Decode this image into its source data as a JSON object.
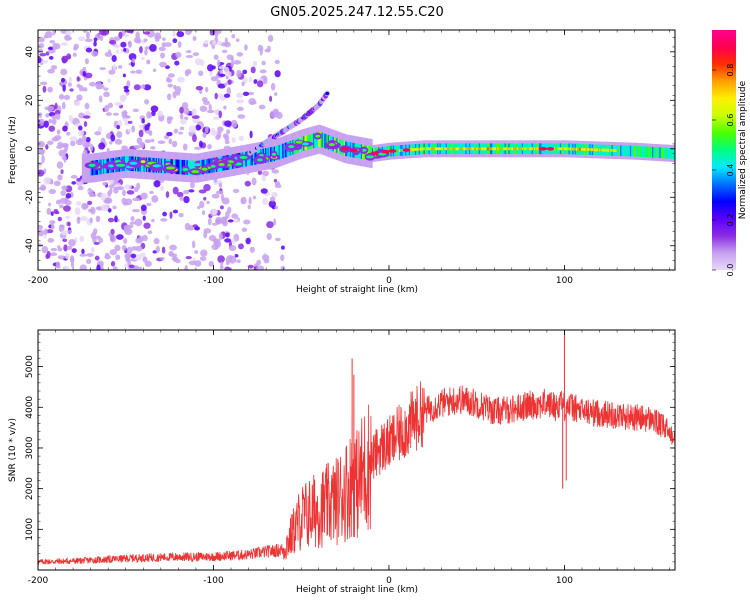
{
  "title": "GN05.2025.247.12.55.C20",
  "chart_data": [
    {
      "type": "heatmap",
      "name": "spectrogram",
      "xlabel": "Height of straight line (km)",
      "ylabel": "Frequency (Hz)",
      "xlim": [
        -200,
        163
      ],
      "ylim": [
        -50,
        49
      ],
      "xticks": [
        -200,
        -100,
        0,
        100
      ],
      "yticks": [
        -40,
        -20,
        0,
        20,
        40
      ],
      "ridge": [
        {
          "x": -170,
          "y": -8
        },
        {
          "x": -150,
          "y": -6
        },
        {
          "x": -130,
          "y": -7
        },
        {
          "x": -110,
          "y": -8
        },
        {
          "x": -95,
          "y": -6
        },
        {
          "x": -80,
          "y": -4
        },
        {
          "x": -65,
          "y": -2
        },
        {
          "x": -50,
          "y": 2
        },
        {
          "x": -40,
          "y": 4
        },
        {
          "x": -25,
          "y": 0
        },
        {
          "x": -10,
          "y": -2
        },
        {
          "x": 0,
          "y": -1
        },
        {
          "x": 20,
          "y": 0
        },
        {
          "x": 60,
          "y": 0
        },
        {
          "x": 100,
          "y": 0
        },
        {
          "x": 140,
          "y": -1
        },
        {
          "x": 163,
          "y": -2
        }
      ],
      "upper_branch": [
        {
          "x": -80,
          "y": -2
        },
        {
          "x": -65,
          "y": 5
        },
        {
          "x": -50,
          "y": 12
        },
        {
          "x": -40,
          "y": 18
        },
        {
          "x": -35,
          "y": 23
        }
      ],
      "colorbar": {
        "label": "Normalized spectral amplitude",
        "ticks": [
          "0.0",
          "0.2",
          "0.4",
          "0.6",
          "0.8"
        ],
        "range": [
          0,
          0.96
        ],
        "colors": [
          "#e8d8f8",
          "#c7a1f0",
          "#8b2be2",
          "#5a00ff",
          "#0000ff",
          "#0070ff",
          "#00e8ff",
          "#00ff80",
          "#4cff00",
          "#c8ff00",
          "#ffef00",
          "#ffa000",
          "#ff3000",
          "#ff0050",
          "#ff0090"
        ]
      }
    },
    {
      "type": "line",
      "name": "snr",
      "xlabel": "Height of straight line (km)",
      "ylabel": "SNR (10 * v/v)",
      "xlim": [
        -200,
        163
      ],
      "ylim": [
        0,
        5900
      ],
      "xticks": [
        -200,
        -100,
        0,
        100
      ],
      "yticks": [
        1000,
        2000,
        3000,
        4000,
        5000
      ],
      "color": "#ee3333",
      "series": [
        {
          "name": "SNR",
          "x": [
            -200,
            -180,
            -160,
            -140,
            -120,
            -100,
            -80,
            -70,
            -60,
            -55,
            -50,
            -40,
            -30,
            -22,
            -20,
            -18,
            -15,
            -10,
            -5,
            0,
            10,
            20,
            30,
            40,
            50,
            60,
            70,
            80,
            90,
            96,
            98,
            100,
            102,
            110,
            120,
            130,
            140,
            150,
            160,
            163
          ],
          "y": [
            200,
            220,
            260,
            300,
            320,
            330,
            380,
            450,
            500,
            900,
            1300,
            1500,
            1700,
            2100,
            2300,
            2100,
            2400,
            2700,
            3000,
            3100,
            3500,
            3900,
            4100,
            4200,
            4100,
            3900,
            3950,
            4050,
            4100,
            4000,
            4200,
            4000,
            4050,
            3900,
            3850,
            3800,
            3750,
            3700,
            3400,
            3300
          ]
        },
        {
          "name": "spikes",
          "x": [
            -21,
            -20,
            100,
            99,
            101
          ],
          "y": [
            5200,
            4800,
            5900,
            2000,
            2200
          ]
        }
      ]
    }
  ]
}
